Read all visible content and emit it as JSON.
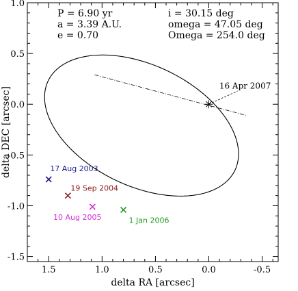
{
  "chart_data": {
    "type": "scatter",
    "title": "",
    "xlabel": "delta RA [arcsec]",
    "ylabel": "delta DEC [arcsec]",
    "xlim": [
      1.7,
      -0.65
    ],
    "ylim": [
      -1.55,
      1.0
    ],
    "x_ticks": [
      1.5,
      1.0,
      0.5,
      0.0,
      -0.5
    ],
    "x_tick_labels": [
      "1.5",
      "1.0",
      "0.5",
      "0.0",
      "-0.5"
    ],
    "y_ticks": [
      1.0,
      0.5,
      0.0,
      -0.5,
      -1.0,
      -1.5
    ],
    "y_tick_labels": [
      "1.0",
      "0.5",
      "0.0",
      "-0.5",
      "-1.0",
      "-1.5"
    ],
    "grid": false,
    "orbital_parameters": {
      "left": [
        "P = 6.90 yr",
        "a = 3.39 A.U.",
        "e = 0.70"
      ],
      "right": [
        "i = 30.15 deg",
        "omega = 47.05 deg",
        "Omega = 254.0 deg"
      ]
    },
    "orbit_ellipse": {
      "center": [
        0.63,
        -0.21
      ],
      "semi_major": 0.98,
      "semi_minor": 0.59,
      "rotation_deg": 28
    },
    "primary_star": {
      "x": 0.0,
      "y": 0.0,
      "marker": "asterisk"
    },
    "line_of_nodes": {
      "from": [
        1.07,
        0.29
      ],
      "to": [
        -0.35,
        -0.11
      ]
    },
    "periastron_line": {
      "from": [
        0.0,
        0.0
      ],
      "to": [
        -0.27,
        0.13
      ]
    },
    "points": [
      {
        "label": "17 Aug 2003",
        "x": 1.5,
        "y": -0.74,
        "color": "#1a1a8c"
      },
      {
        "label": "19 Sep 2004",
        "x": 1.32,
        "y": -0.9,
        "color": "#8b1a1a"
      },
      {
        "label": "10 Aug 2005",
        "x": 1.09,
        "y": -1.01,
        "color": "#d12fd1"
      },
      {
        "label": "1 Jan 2006",
        "x": 0.8,
        "y": -1.04,
        "color": "#1e9a1e"
      }
    ],
    "annotation": {
      "label": "16 Apr 2007",
      "x": -0.34,
      "y": 0.18
    }
  }
}
